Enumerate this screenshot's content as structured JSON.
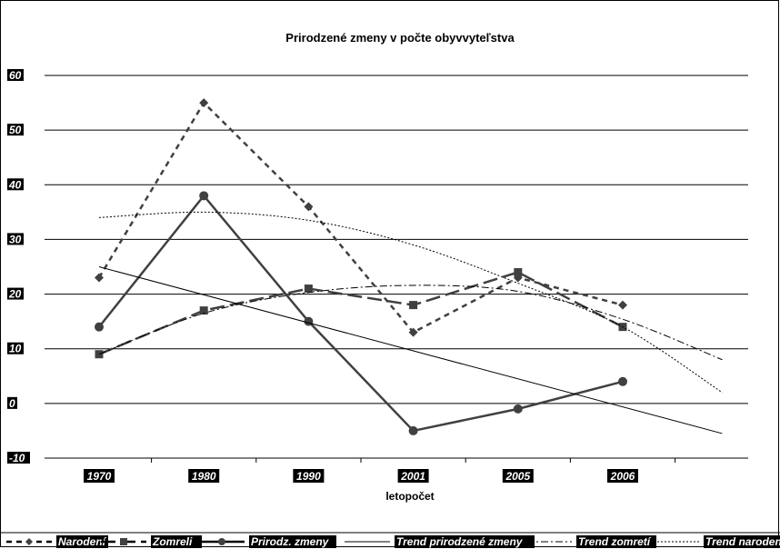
{
  "chart_data": {
    "type": "line",
    "title": "Prirodzené zmeny v počte obyvvyteľstva",
    "xlabel": "letopočet",
    "ylabel": "",
    "categories": [
      "1970",
      "1980",
      "1990",
      "2001",
      "2005",
      "2006"
    ],
    "ylim": [
      -10,
      60
    ],
    "yticks": [
      "60",
      "50",
      "40",
      "30",
      "20",
      "10",
      "0",
      "-10"
    ],
    "grid": true,
    "legend_position": "bottom",
    "series": [
      {
        "name": "Narodení",
        "values": [
          23,
          55,
          36,
          13,
          23,
          18
        ],
        "style": "dashed",
        "marker": "diamond",
        "color": "#404040"
      },
      {
        "name": "Zomreli",
        "values": [
          9,
          17,
          21,
          18,
          24,
          14
        ],
        "style": "long-dash",
        "marker": "square",
        "color": "#404040"
      },
      {
        "name": "Prirodz. zmeny",
        "values": [
          14,
          38,
          15,
          -5,
          -1,
          4
        ],
        "style": "solid",
        "marker": "circle",
        "color": "#404040"
      },
      {
        "name": "Trend prirodzené zmeny",
        "type": "linear",
        "values": [
          25,
          19.3,
          13.6,
          7.9,
          2.2,
          -3.5
        ],
        "style": "solid-thin",
        "color": "#000000"
      },
      {
        "name": "Trend zomretí",
        "type": "polynomial",
        "values": [
          9,
          16.5,
          20.3,
          21.6,
          20.5,
          15.4
        ],
        "style": "dash-dot",
        "color": "#000000"
      },
      {
        "name": "Trend narodení",
        "type": "polynomial",
        "values": [
          34,
          35,
          33.5,
          29,
          22,
          14
        ],
        "style": "dotted",
        "color": "#000000"
      }
    ]
  }
}
